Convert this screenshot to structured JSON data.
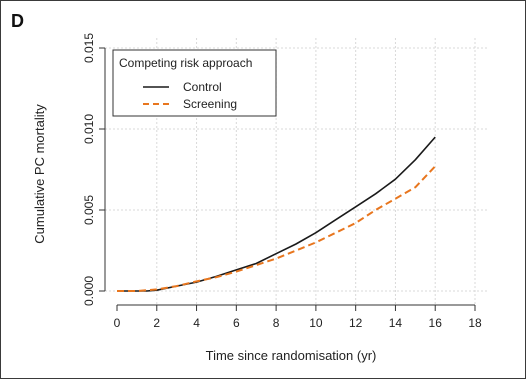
{
  "panel_label": "D",
  "colors": {
    "control": "#1a1a1a",
    "screening": "#e8761e",
    "grid": "#d9d9d9",
    "axis": "#333333"
  },
  "chart_data": {
    "type": "line",
    "xlabel": "Time since randomisation (yr)",
    "ylabel": "Cumulative PC mortality",
    "xlim": [
      0,
      18
    ],
    "ylim": [
      0,
      0.015
    ],
    "x_ticks": [
      0,
      2,
      4,
      6,
      8,
      10,
      12,
      14,
      16,
      18
    ],
    "y_ticks": [
      0.0,
      0.005,
      0.01,
      0.015
    ],
    "y_tick_labels": [
      "0.000",
      "0.005",
      "0.010",
      "0.015"
    ],
    "grid": true,
    "legend": {
      "title": "Competing risk approach",
      "placement": "top-left"
    },
    "series": [
      {
        "name": "Control",
        "style": "solid",
        "x": [
          0,
          1,
          1.5,
          2,
          3,
          4,
          5,
          6,
          7,
          8,
          9,
          10,
          11,
          12,
          13,
          14,
          15,
          16
        ],
        "y": [
          0.0,
          0.0,
          0.0,
          5e-05,
          0.0003,
          0.00055,
          0.0009,
          0.0013,
          0.0017,
          0.0023,
          0.0029,
          0.0036,
          0.0044,
          0.0052,
          0.006,
          0.0069,
          0.0081,
          0.0095
        ]
      },
      {
        "name": "Screening",
        "style": "dashed",
        "x": [
          0,
          1,
          2,
          3,
          4,
          5,
          6,
          7,
          8,
          9,
          10,
          11,
          12,
          13,
          14,
          15,
          16
        ],
        "y": [
          0.0,
          0.0,
          0.0001,
          0.0003,
          0.0006,
          0.00085,
          0.0012,
          0.0016,
          0.002,
          0.0025,
          0.003,
          0.0036,
          0.0042,
          0.005,
          0.0057,
          0.0064,
          0.0077
        ]
      }
    ]
  }
}
